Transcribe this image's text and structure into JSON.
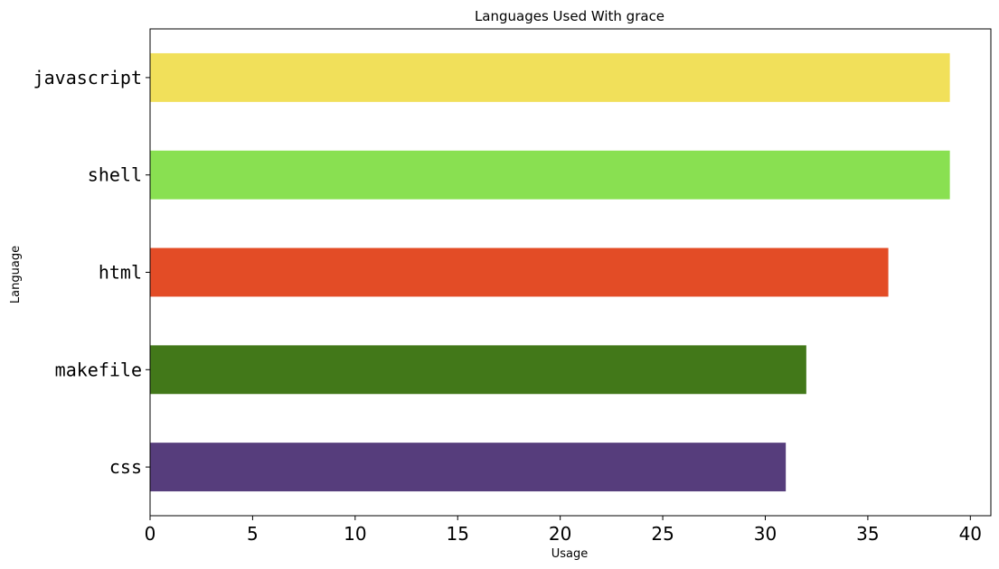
{
  "chart_data": {
    "type": "bar",
    "orientation": "horizontal",
    "title": "Languages Used With grace",
    "xlabel": "Usage",
    "ylabel": "Language",
    "xlim": [
      0,
      41
    ],
    "xticks": [
      0,
      5,
      10,
      15,
      20,
      25,
      30,
      35,
      40
    ],
    "categories": [
      "javascript",
      "shell",
      "html",
      "makefile",
      "css"
    ],
    "values": [
      39,
      39,
      36,
      32,
      31
    ],
    "colors": [
      "#f1e05a",
      "#89e051",
      "#e34c26",
      "#427819",
      "#563d7c"
    ],
    "grid": false,
    "legend": "none"
  }
}
